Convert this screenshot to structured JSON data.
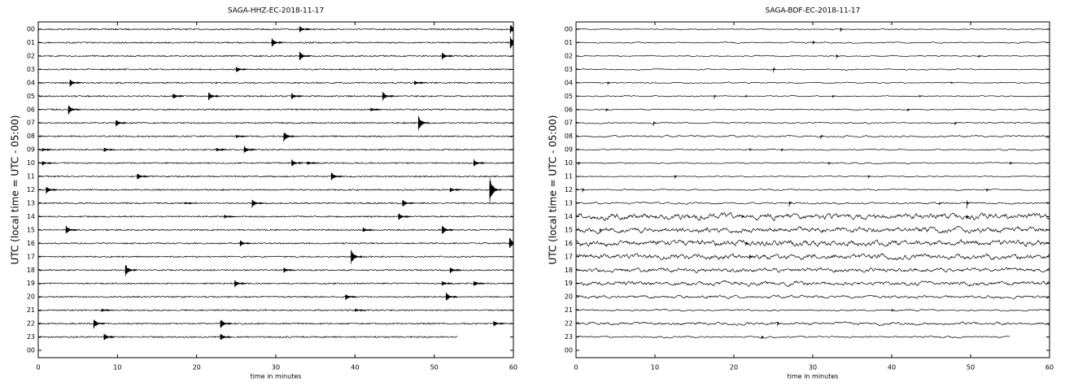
{
  "chart_data": [
    {
      "type": "helicorder",
      "title": "SAGA-HHZ-EC-2018-11-17",
      "xlabel": "time in minutes",
      "ylabel": "UTC (local time = UTC - 05:00)",
      "xlim": [
        0,
        60
      ],
      "xticks": [
        0,
        10,
        20,
        30,
        40,
        50,
        60
      ],
      "color": "#000000",
      "trace_end": 53,
      "rows": [
        "00",
        "01",
        "02",
        "03",
        "04",
        "05",
        "06",
        "07",
        "08",
        "09",
        "10",
        "11",
        "12",
        "13",
        "14",
        "15",
        "16",
        "17",
        "18",
        "19",
        "20",
        "21",
        "22",
        "23",
        "00"
      ],
      "noise": [
        0.05,
        0.05,
        0.05,
        0.05,
        0.05,
        0.05,
        0.05,
        0.05,
        0.05,
        0.05,
        0.05,
        0.05,
        0.05,
        0.05,
        0.05,
        0.05,
        0.05,
        0.05,
        0.05,
        0.05,
        0.05,
        0.05,
        0.05,
        0.05
      ],
      "events": [
        [
          [
            33,
            0.5
          ],
          [
            59.6,
            0.8
          ]
        ],
        [
          [
            29.5,
            0.7
          ],
          [
            59.6,
            1
          ]
        ],
        [
          [
            33,
            0.7
          ],
          [
            51,
            0.6
          ]
        ],
        [
          [
            25,
            0.5
          ]
        ],
        [
          [
            4,
            0.6
          ],
          [
            47.5,
            0.4
          ]
        ],
        [
          [
            17,
            0.5
          ],
          [
            21.5,
            0.7
          ],
          [
            32,
            0.5
          ],
          [
            43.5,
            0.7
          ]
        ],
        [
          [
            3.8,
            0.8
          ],
          [
            42,
            0.3
          ]
        ],
        [
          [
            9.8,
            0.6
          ],
          [
            48,
            1.2
          ]
        ],
        [
          [
            25,
            0.3
          ],
          [
            31,
            0.9
          ]
        ],
        [
          [
            0.5,
            0.3
          ],
          [
            8.3,
            0.4
          ],
          [
            22.5,
            0.3
          ],
          [
            26,
            0.6
          ]
        ],
        [
          [
            0.5,
            0.4
          ],
          [
            32,
            0.6
          ],
          [
            34,
            0.3
          ],
          [
            55,
            0.6
          ]
        ],
        [
          [
            12.5,
            0.5
          ],
          [
            37,
            0.7
          ]
        ],
        [
          [
            1,
            0.6
          ],
          [
            52,
            0.4
          ],
          [
            57,
            2
          ]
        ],
        [
          [
            18.5,
            0.2
          ],
          [
            27,
            0.7
          ],
          [
            46,
            0.6
          ]
        ],
        [
          [
            23.5,
            0.3
          ],
          [
            45.5,
            0.6
          ]
        ],
        [
          [
            3.5,
            0.7
          ],
          [
            41,
            0.4
          ],
          [
            51,
            0.8
          ]
        ],
        [
          [
            25.5,
            0.5
          ],
          [
            59.5,
            1
          ]
        ],
        [
          [
            39.5,
            1.2
          ]
        ],
        [
          [
            11,
            1
          ],
          [
            31,
            0.4
          ],
          [
            52,
            0.5
          ]
        ],
        [
          [
            24.8,
            0.6
          ],
          [
            51,
            0.4
          ],
          [
            55,
            0.5
          ]
        ],
        [
          [
            38.8,
            0.5
          ],
          [
            51.5,
            0.7
          ]
        ],
        [
          [
            8,
            0.3
          ],
          [
            40,
            0.3
          ]
        ],
        [
          [
            7,
            0.8
          ],
          [
            23,
            0.8
          ],
          [
            57.5,
            0.5
          ]
        ],
        [
          [
            8.3,
            0.6
          ],
          [
            23,
            0.6
          ]
        ]
      ]
    },
    {
      "type": "helicorder",
      "title": "SAGA-BDF-EC-2018-11-17",
      "xlabel": "time in minutes",
      "ylabel": "UTC (local time = UTC - 05:00)",
      "xlim": [
        0,
        60
      ],
      "xticks": [
        0,
        10,
        20,
        30,
        40,
        50,
        60
      ],
      "color": "#000000",
      "trace_end": 55,
      "rows": [
        "00",
        "01",
        "02",
        "03",
        "04",
        "05",
        "06",
        "07",
        "08",
        "09",
        "10",
        "11",
        "12",
        "13",
        "14",
        "15",
        "16",
        "17",
        "18",
        "19",
        "20",
        "21",
        "22",
        "23",
        "00"
      ],
      "noise": [
        0.1,
        0.1,
        0.1,
        0.1,
        0.1,
        0.1,
        0.1,
        0.12,
        0.15,
        0.12,
        0.12,
        0.1,
        0.12,
        0.15,
        0.5,
        0.45,
        0.5,
        0.45,
        0.35,
        0.35,
        0.25,
        0.15,
        0.25,
        0.15
      ],
      "events": [
        [
          [
            33.5,
            0.4
          ]
        ],
        [
          [
            30,
            0.5
          ]
        ],
        [
          [
            33,
            0.4
          ],
          [
            51,
            0.3
          ]
        ],
        [
          [
            25,
            0.6
          ]
        ],
        [
          [
            4,
            0.4
          ],
          [
            47.5,
            0.2
          ]
        ],
        [
          [
            17.5,
            0.4
          ],
          [
            21.5,
            0.3
          ],
          [
            32.5,
            0.3
          ],
          [
            43.5,
            0.2
          ]
        ],
        [
          [
            3.8,
            0.4
          ],
          [
            42,
            0.4
          ]
        ],
        [
          [
            9.8,
            0.6
          ],
          [
            48,
            0.4
          ]
        ],
        [
          [
            31,
            0.5
          ]
        ],
        [
          [
            22,
            0.3
          ],
          [
            26,
            0.3
          ]
        ],
        [
          [
            0.3,
            0.3
          ],
          [
            32,
            0.4
          ],
          [
            55,
            0.4
          ]
        ],
        [
          [
            12.5,
            0.5
          ],
          [
            37,
            0.3
          ]
        ],
        [
          [
            0.8,
            0.5
          ],
          [
            52,
            0.5
          ]
        ],
        [
          [
            27,
            0.6
          ],
          [
            46,
            0.3
          ],
          [
            49.5,
            1
          ]
        ],
        [
          [
            21,
            0.4
          ],
          [
            49.5,
            0.6
          ]
        ],
        [
          [
            3,
            0.4
          ]
        ],
        [
          [
            21.5,
            0.5
          ]
        ],
        [
          [
            22,
            0.6
          ]
        ],
        [],
        [],
        [],
        [
          [
            40,
            0.3
          ]
        ],
        [
          [
            25.5,
            0.5
          ]
        ],
        [
          [
            23.5,
            0.4
          ]
        ]
      ]
    }
  ]
}
